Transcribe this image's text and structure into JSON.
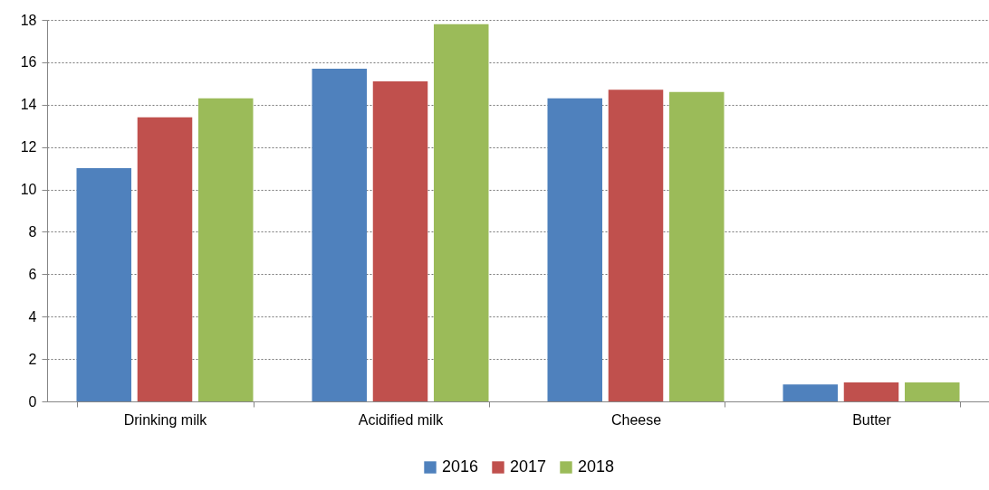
{
  "chart_data": {
    "type": "bar",
    "categories": [
      "Drinking milk",
      "Acidified milk",
      "Cheese",
      "Butter"
    ],
    "series": [
      {
        "name": "2016",
        "color": "#4f81bd",
        "values": [
          11.0,
          15.7,
          14.3,
          0.8
        ]
      },
      {
        "name": "2017",
        "color": "#c0504d",
        "values": [
          13.4,
          15.1,
          14.7,
          0.9
        ]
      },
      {
        "name": "2018",
        "color": "#9bbb59",
        "values": [
          14.3,
          17.8,
          14.6,
          0.9
        ]
      }
    ],
    "ylim": [
      0,
      18
    ],
    "yticks": [
      0,
      2,
      4,
      6,
      8,
      10,
      12,
      14,
      16,
      18
    ],
    "grid": "y",
    "legend": "bottom"
  }
}
